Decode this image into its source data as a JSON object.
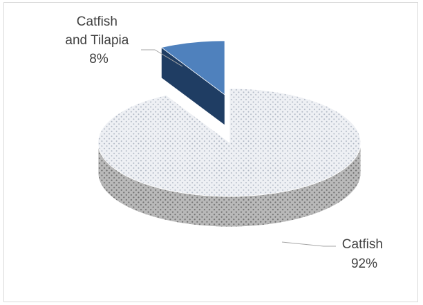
{
  "chart_data": {
    "type": "pie",
    "style": "3d-exploded",
    "categories": [
      "Catfish and Tilapia",
      "Catfish"
    ],
    "values": [
      8,
      92
    ],
    "labels": [
      {
        "lines": [
          "Catfish",
          "and Tilapia",
          "8%"
        ]
      },
      {
        "lines": [
          "Catfish",
          "92%"
        ]
      }
    ],
    "colors": {
      "catfish_and_tilapia": "#4f81bd",
      "catfish_and_tilapia_side": "#1f3d63",
      "catfish_top": "#e4e7ec",
      "catfish_side": "#9a9a9a",
      "leader_line": "#a6a6a6"
    },
    "legend": "none"
  }
}
